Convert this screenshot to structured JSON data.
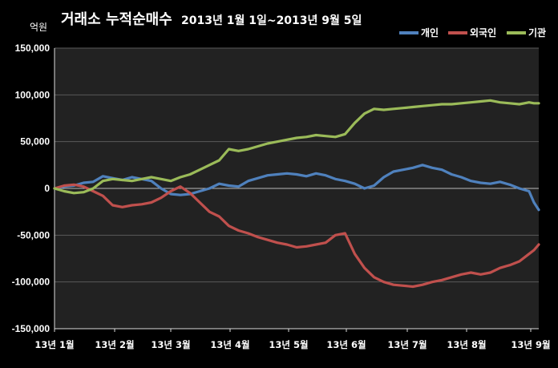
{
  "chart_data": {
    "type": "line",
    "title": "거래소 누적순매수",
    "subtitle": "2013년 1월 1일~2013년 9월 5일",
    "ylabel": "억원",
    "xlabel": "",
    "ylim": [
      -150000,
      150000
    ],
    "yticks": [
      150000,
      100000,
      50000,
      0,
      -50000,
      -100000,
      -150000
    ],
    "ytick_labels": [
      "150,000",
      "100,000",
      "50,000",
      "0",
      "-50,000",
      "-100,000",
      "-150,000"
    ],
    "xtick_labels": [
      "13년 1월",
      "13년 2월",
      "13년 3월",
      "13년 4월",
      "13년 5월",
      "13년 6월",
      "13년 7월",
      "13년 8월",
      "13년 9월"
    ],
    "grid": true,
    "legend_position": "top-right",
    "x_index_max": 100,
    "series": [
      {
        "name": "개인",
        "color": "#4f81bd",
        "x": [
          0,
          2,
          4,
          6,
          8,
          10,
          12,
          14,
          16,
          18,
          20,
          22,
          24,
          26,
          28,
          30,
          32,
          34,
          36,
          38,
          40,
          42,
          44,
          46,
          48,
          50,
          52,
          54,
          56,
          58,
          60,
          62,
          64,
          66,
          68,
          70,
          72,
          74,
          76,
          78,
          80,
          82,
          84,
          86,
          88,
          90,
          92,
          94,
          96,
          98,
          99,
          100
        ],
        "values": [
          0,
          2000,
          3000,
          6000,
          7000,
          13000,
          11000,
          9000,
          12000,
          10000,
          8000,
          0,
          -6000,
          -7000,
          -6000,
          -3000,
          0,
          5000,
          3000,
          2000,
          8000,
          11000,
          14000,
          15000,
          16000,
          15000,
          13000,
          16000,
          14000,
          10000,
          8000,
          5000,
          0,
          3000,
          12000,
          18000,
          20000,
          22000,
          25000,
          22000,
          20000,
          15000,
          12000,
          8000,
          6000,
          5000,
          7000,
          4000,
          0,
          -3000,
          -15000,
          -23000
        ]
      },
      {
        "name": "외국인",
        "color": "#c0504d",
        "x": [
          0,
          2,
          4,
          6,
          8,
          10,
          12,
          14,
          16,
          18,
          20,
          22,
          24,
          26,
          28,
          30,
          32,
          34,
          36,
          38,
          40,
          42,
          44,
          46,
          48,
          50,
          52,
          54,
          56,
          58,
          60,
          62,
          64,
          66,
          68,
          70,
          72,
          74,
          76,
          78,
          80,
          82,
          84,
          86,
          88,
          90,
          92,
          94,
          96,
          98,
          99,
          100
        ],
        "values": [
          0,
          3000,
          4000,
          2000,
          -3000,
          -8000,
          -18000,
          -20000,
          -18000,
          -17000,
          -15000,
          -10000,
          -3000,
          2000,
          -5000,
          -15000,
          -25000,
          -30000,
          -40000,
          -45000,
          -48000,
          -52000,
          -55000,
          -58000,
          -60000,
          -63000,
          -62000,
          -60000,
          -58000,
          -50000,
          -48000,
          -70000,
          -85000,
          -95000,
          -100000,
          -103000,
          -104000,
          -105000,
          -103000,
          -100000,
          -98000,
          -95000,
          -92000,
          -90000,
          -92000,
          -90000,
          -85000,
          -82000,
          -78000,
          -70000,
          -66000,
          -60000
        ]
      },
      {
        "name": "기관",
        "color": "#9bbb59",
        "x": [
          0,
          2,
          4,
          6,
          8,
          10,
          12,
          14,
          16,
          18,
          20,
          22,
          24,
          26,
          28,
          30,
          32,
          34,
          36,
          38,
          40,
          42,
          44,
          46,
          48,
          50,
          52,
          54,
          56,
          58,
          60,
          62,
          64,
          66,
          68,
          70,
          72,
          74,
          76,
          78,
          80,
          82,
          84,
          86,
          88,
          90,
          92,
          94,
          96,
          98,
          99,
          100
        ],
        "values": [
          0,
          -3000,
          -5000,
          -4000,
          0,
          8000,
          10000,
          9000,
          8000,
          10000,
          12000,
          10000,
          8000,
          12000,
          15000,
          20000,
          25000,
          30000,
          42000,
          40000,
          42000,
          45000,
          48000,
          50000,
          52000,
          54000,
          55000,
          57000,
          56000,
          55000,
          58000,
          70000,
          80000,
          85000,
          84000,
          85000,
          86000,
          87000,
          88000,
          89000,
          90000,
          90000,
          91000,
          92000,
          93000,
          94000,
          92000,
          91000,
          90000,
          92000,
          91000,
          91000
        ]
      }
    ]
  }
}
